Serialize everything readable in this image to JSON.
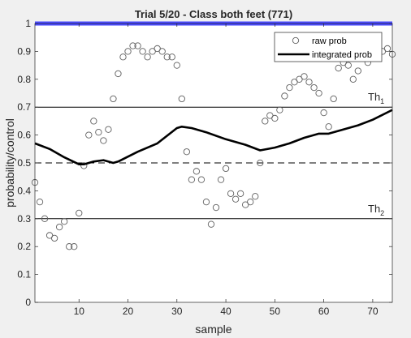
{
  "chart_data": {
    "type": "scatter",
    "title": "Trial 5/20 - Class both feet (771)",
    "xlabel": "sample",
    "ylabel": "probability/control",
    "xlim": [
      1,
      74
    ],
    "ylim": [
      0,
      1
    ],
    "xticks": [
      10,
      20,
      30,
      40,
      50,
      60,
      70
    ],
    "yticks": [
      0,
      0.1,
      0.2,
      0.3,
      0.4,
      0.5,
      0.6,
      0.7,
      0.8,
      0.9,
      1
    ],
    "grid": false,
    "legend_position": "top-right",
    "series": [
      {
        "name": "raw prob",
        "marker": "open-circle",
        "x": [
          1,
          2,
          3,
          4,
          5,
          6,
          7,
          8,
          9,
          10,
          11,
          12,
          13,
          14,
          15,
          16,
          17,
          18,
          19,
          20,
          21,
          22,
          23,
          24,
          25,
          26,
          27,
          28,
          29,
          30,
          31,
          32,
          33,
          34,
          35,
          36,
          37,
          38,
          39,
          40,
          41,
          42,
          43,
          44,
          45,
          46,
          47,
          48,
          49,
          50,
          51,
          52,
          53,
          54,
          55,
          56,
          57,
          58,
          59,
          60,
          61,
          62,
          63,
          64,
          65,
          66,
          67,
          68,
          69,
          70,
          71,
          72,
          73,
          74
        ],
        "y": [
          0.43,
          0.36,
          0.3,
          0.24,
          0.23,
          0.27,
          0.29,
          0.2,
          0.2,
          0.32,
          0.49,
          0.6,
          0.65,
          0.61,
          0.58,
          0.62,
          0.73,
          0.82,
          0.88,
          0.9,
          0.92,
          0.92,
          0.9,
          0.88,
          0.9,
          0.91,
          0.9,
          0.88,
          0.88,
          0.85,
          0.73,
          0.54,
          0.44,
          0.47,
          0.44,
          0.36,
          0.28,
          0.34,
          0.44,
          0.48,
          0.39,
          0.37,
          0.39,
          0.35,
          0.36,
          0.38,
          0.5,
          0.65,
          0.67,
          0.66,
          0.69,
          0.74,
          0.77,
          0.79,
          0.8,
          0.81,
          0.79,
          0.77,
          0.75,
          0.68,
          0.63,
          0.73,
          0.84,
          0.86,
          0.85,
          0.8,
          0.83,
          0.88,
          0.86,
          0.88,
          0.89,
          0.9,
          0.91,
          0.89
        ]
      },
      {
        "name": "integrated prob",
        "marker": "line",
        "x": [
          1,
          4,
          7,
          10,
          11,
          13,
          15,
          17,
          18,
          22,
          26,
          30,
          31,
          33,
          36,
          40,
          44,
          47,
          50,
          53,
          56,
          59,
          61,
          64,
          67,
          70,
          74
        ],
        "y": [
          0.57,
          0.55,
          0.52,
          0.495,
          0.495,
          0.505,
          0.51,
          0.5,
          0.505,
          0.54,
          0.57,
          0.625,
          0.63,
          0.625,
          0.61,
          0.585,
          0.565,
          0.545,
          0.555,
          0.57,
          0.59,
          0.605,
          0.605,
          0.62,
          0.635,
          0.655,
          0.69
        ]
      }
    ],
    "reference_lines": [
      {
        "y": 1.0,
        "style": "solid",
        "color": "#4a4aff"
      },
      {
        "y": 0.7,
        "style": "solid",
        "color": "#000000",
        "label_main": "Th",
        "label_sub": "1"
      },
      {
        "y": 0.5,
        "style": "dashed",
        "color": "#000000"
      },
      {
        "y": 0.3,
        "style": "solid",
        "color": "#000000",
        "label_main": "Th",
        "label_sub": "2"
      }
    ]
  }
}
